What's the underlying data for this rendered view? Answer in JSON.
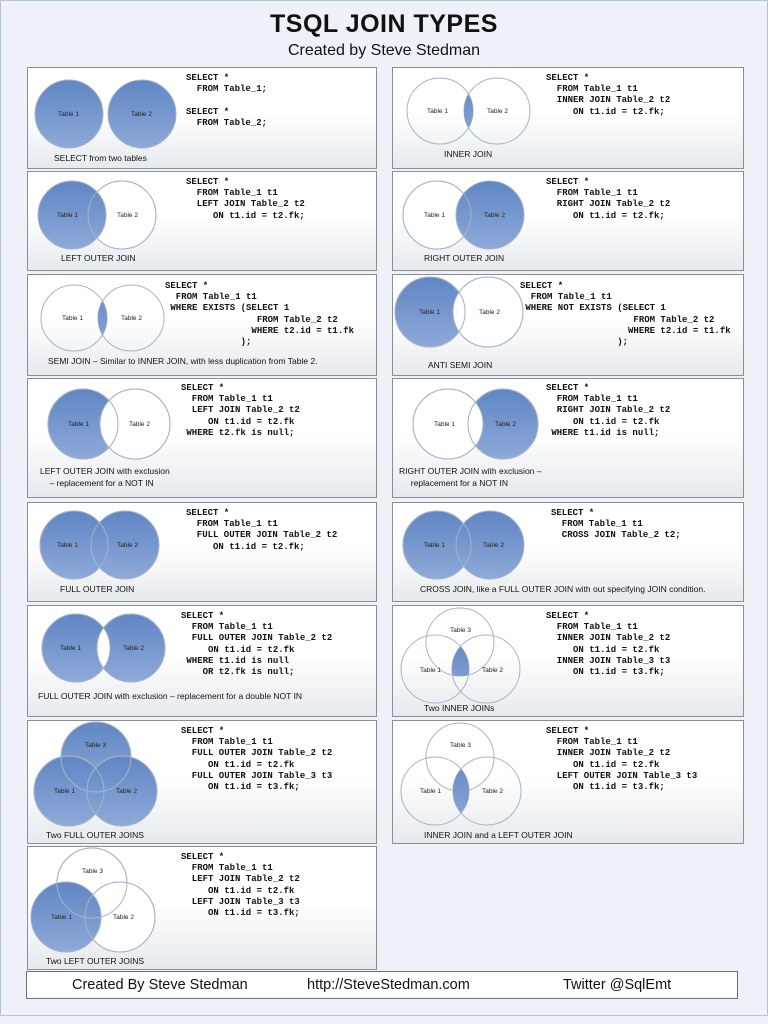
{
  "header": {
    "title": "TSQL JOIN TYPES",
    "subtitle": "Created by Steve Stedman"
  },
  "labels": {
    "t1": "Table 1",
    "t2": "Table 2",
    "t3": "Table 3"
  },
  "colors": {
    "fill": "#7396cf",
    "outline": "#a8b4c6",
    "background": "#eef2f8"
  },
  "panels": {
    "two_tables": {
      "caption": "SELECT from two tables",
      "sql": "SELECT *\n  FROM Table_1;\n\nSELECT *\n  FROM Table_2;"
    },
    "inner": {
      "caption": "INNER JOIN",
      "sql": "SELECT *\n  FROM Table_1 t1\n  INNER JOIN Table_2 t2\n     ON t1.id = t2.fk;"
    },
    "left_outer": {
      "caption": "LEFT OUTER JOIN",
      "sql": "SELECT *\n  FROM Table_1 t1\n  LEFT JOIN Table_2 t2\n     ON t1.id = t2.fk;"
    },
    "right_outer": {
      "caption": "RIGHT OUTER JOIN",
      "sql": "SELECT *\n  FROM Table_1 t1\n  RIGHT JOIN Table_2 t2\n     ON t1.id = t2.fk;"
    },
    "semi": {
      "caption": "SEMI JOIN – Similar to INNER JOIN, with less duplication from Table 2.",
      "sql": "SELECT *\n  FROM Table_1 t1\n WHERE EXISTS (SELECT 1\n                 FROM Table_2 t2\n                WHERE t2.id = t1.fk\n              );"
    },
    "anti_semi": {
      "caption": "ANTI SEMI JOIN",
      "sql": "SELECT *\n  FROM Table_1 t1\n WHERE NOT EXISTS (SELECT 1\n                     FROM Table_2 t2\n                    WHERE t2.id = t1.fk\n                  );"
    },
    "left_excl": {
      "caption": "LEFT OUTER JOIN with exclusion\n    – replacement for a NOT IN",
      "sql": "SELECT *\n  FROM Table_1 t1\n  LEFT JOIN Table_2 t2\n     ON t1.id = t2.fk\n WHERE t2.fk is null;"
    },
    "right_excl": {
      "caption": "RIGHT OUTER JOIN with exclusion –\n     replacement for a NOT IN",
      "sql": "SELECT *\n  FROM Table_1 t1\n  RIGHT JOIN Table_2 t2\n     ON t1.id = t2.fk\n WHERE t1.id is null;"
    },
    "full_outer": {
      "caption": "FULL OUTER JOIN",
      "sql": "SELECT *\n  FROM Table_1 t1\n  FULL OUTER JOIN Table_2 t2\n     ON t1.id = t2.fk;"
    },
    "cross": {
      "caption": "CROSS JOIN, like a FULL OUTER JOIN with out specifying JOIN condition.",
      "sql": "SELECT *\n  FROM Table_1 t1\n  CROSS JOIN Table_2 t2;"
    },
    "full_excl": {
      "caption": "FULL OUTER JOIN with exclusion – replacement for a double NOT IN",
      "sql": "SELECT *\n  FROM Table_1 t1\n  FULL OUTER JOIN Table_2 t2\n     ON t1.id = t2.fk\n WHERE t1.id is null\n    OR t2.fk is null;"
    },
    "two_inner": {
      "caption": "Two INNER JOINs",
      "sql": "SELECT *\n  FROM Table_1 t1\n  INNER JOIN Table_2 t2\n     ON t1.id = t2.fk\n  INNER JOIN Table_3 t3\n     ON t1.id = t3.fk;"
    },
    "two_full": {
      "caption": "Two FULL OUTER JOINS",
      "sql": "SELECT *\n  FROM Table_1 t1\n  FULL OUTER JOIN Table_2 t2\n     ON t1.id = t2.fk\n  FULL OUTER JOIN Table_3 t3\n     ON t1.id = t3.fk;"
    },
    "inner_left": {
      "caption": "INNER JOIN and a LEFT OUTER JOIN",
      "sql": "SELECT *\n  FROM Table_1 t1\n  INNER JOIN Table_2 t2\n     ON t1.id = t2.fk\n  LEFT OUTER JOIN Table_3 t3\n     ON t1.id = t3.fk;"
    },
    "two_left": {
      "caption": "Two LEFT OUTER JOINS",
      "sql": "SELECT *\n  FROM Table_1 t1\n  LEFT JOIN Table_2 t2\n     ON t1.id = t2.fk\n  LEFT JOIN Table_3 t3\n     ON t1.id = t3.fk;"
    }
  },
  "footer": {
    "author": "Created By Steve Stedman",
    "url": "http://SteveStedman.com",
    "twitter": "Twitter  @SqlEmt"
  }
}
